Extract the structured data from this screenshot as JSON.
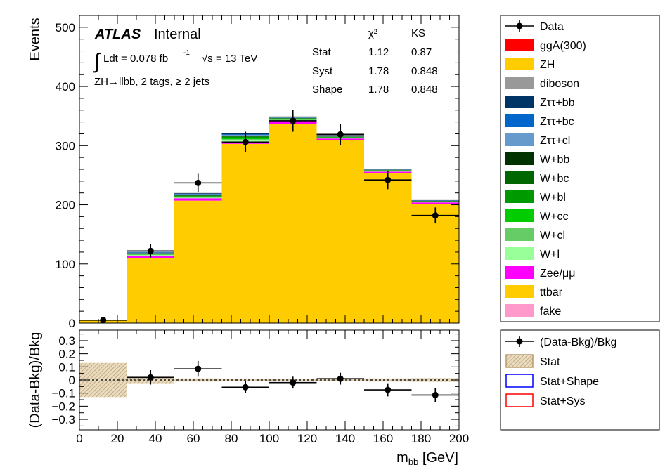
{
  "chart_data": [
    {
      "type": "bar",
      "panel": "main",
      "ylabel": "Events",
      "xlabel": "m_bb [GeV]",
      "xlim": [
        0,
        200
      ],
      "ylim": [
        0,
        520
      ],
      "yticks": [
        "0",
        "100",
        "200",
        "300",
        "400",
        "500"
      ],
      "bin_edges": [
        0,
        25,
        50,
        75,
        100,
        125,
        150,
        175,
        200
      ],
      "series": [
        {
          "name": "ttbar",
          "color": "#ffcc00",
          "values": [
            5,
            110,
            207,
            303,
            337,
            309,
            253,
            201
          ]
        },
        {
          "name": "Zee/μμ",
          "color": "#ff00ff",
          "values": [
            0.3,
            4,
            4,
            4,
            5,
            3,
            3,
            3
          ]
        },
        {
          "name": "W+l",
          "color": "#99ff99",
          "values": [
            0,
            1,
            1,
            2,
            1,
            1,
            1,
            0.5
          ]
        },
        {
          "name": "W+cl",
          "color": "#66cc66",
          "values": [
            0,
            0.5,
            1,
            2,
            1,
            0.5,
            0.5,
            0.5
          ]
        },
        {
          "name": "W+cc",
          "color": "#00cc00",
          "values": [
            0,
            0.5,
            1,
            2,
            1,
            0.5,
            0.5,
            0.5
          ]
        },
        {
          "name": "W+bl",
          "color": "#009900",
          "values": [
            0,
            0.5,
            1,
            2,
            1,
            0.5,
            0.5,
            0.5
          ]
        },
        {
          "name": "W+bc",
          "color": "#006600",
          "values": [
            0,
            0.5,
            1,
            1,
            0.5,
            0.5,
            0.5,
            0.3
          ]
        },
        {
          "name": "W+bb",
          "color": "#003300",
          "values": [
            0,
            1,
            1,
            1,
            0.5,
            0.5,
            0.3,
            0.3
          ]
        },
        {
          "name": "Zττ+cl",
          "color": "#6699cc",
          "values": [
            0,
            1,
            1,
            1,
            0.5,
            0.5,
            0.3,
            0.3
          ]
        },
        {
          "name": "Zττ+bc",
          "color": "#0066cc",
          "values": [
            0,
            0.5,
            0.5,
            1,
            0.5,
            0.5,
            0.3,
            0.3
          ]
        },
        {
          "name": "Zττ+bb",
          "color": "#003366",
          "values": [
            0,
            1,
            1,
            2,
            1,
            1,
            0.5,
            0.5
          ]
        },
        {
          "name": "diboson",
          "color": "#999999",
          "values": [
            0,
            0,
            0.5,
            0.5,
            0.5,
            0.5,
            0.3,
            0.3
          ]
        },
        {
          "name": "ZH",
          "color": "#ffcc00",
          "values": [
            0,
            0,
            0,
            0,
            0,
            0,
            0,
            0
          ]
        },
        {
          "name": "ggA(300)",
          "color": "#ff0000",
          "values": [
            0,
            0,
            0,
            0,
            0,
            0,
            0,
            0
          ]
        }
      ],
      "data_points": {
        "name": "Data",
        "x": [
          12.5,
          37.5,
          62.5,
          87.5,
          112.5,
          137.5,
          162.5,
          187.5
        ],
        "y": [
          5,
          122,
          237,
          306,
          342,
          319,
          242,
          182
        ],
        "yerr": [
          2.2,
          11,
          15.4,
          17.5,
          18.5,
          17.9,
          15.6,
          13.5
        ]
      },
      "legend": [
        "Data",
        "ggA(300)",
        "ZH",
        "diboson",
        "Zττ+bb",
        "Zττ+bc",
        "Zττ+cl",
        "W+bb",
        "W+bc",
        "W+bl",
        "W+cc",
        "W+cl",
        "W+l",
        "Zee/μμ",
        "ttbar",
        "fake"
      ],
      "legend_colors": {
        "ggA(300)": "#ff0000",
        "ZH": "#ffcc00",
        "diboson": "#999999",
        "Zττ+bb": "#003366",
        "Zττ+bc": "#0066cc",
        "Zττ+cl": "#6699cc",
        "W+bb": "#003300",
        "W+bc": "#006600",
        "W+bl": "#009900",
        "W+cc": "#00cc00",
        "W+cl": "#66cc66",
        "W+l": "#99ff99",
        "Zee/μμ": "#ff00ff",
        "ttbar": "#ffcc00",
        "fake": "#ff99cc"
      },
      "legend_placement": "right, outside plot"
    },
    {
      "type": "scatter",
      "panel": "ratio",
      "ylabel": "(Data-Bkg)/Bkg",
      "xlabel": "m_bb [GeV]",
      "xlim": [
        0,
        200
      ],
      "ylim": [
        -0.38,
        0.38
      ],
      "yticks": [
        "−0.3",
        "−0.2",
        "−0.1",
        "0",
        "0.1",
        "0.2",
        "0.3"
      ],
      "xticks": [
        "0",
        "20",
        "40",
        "60",
        "80",
        "100",
        "120",
        "140",
        "160",
        "180",
        "200"
      ],
      "x": [
        12.5,
        37.5,
        62.5,
        87.5,
        112.5,
        137.5,
        162.5,
        187.5
      ],
      "y": [
        null,
        0.02,
        0.085,
        -0.055,
        -0.02,
        0.01,
        -0.075,
        -0.115
      ],
      "yerr": [
        null,
        0.055,
        0.06,
        0.045,
        0.045,
        0.045,
        0.05,
        0.055
      ],
      "stat_band": [
        0.13,
        0.025,
        0.012,
        0.01,
        0.01,
        0.01,
        0.012,
        0.014
      ],
      "legend": [
        "(Data-Bkg)/Bkg",
        "Stat",
        "Stat+Shape",
        "Stat+Sys"
      ],
      "legend_placement": "right, outside plot"
    }
  ],
  "annotations": {
    "atlas": "ATLAS",
    "internal": "Internal",
    "lumi_prefix": "∫",
    "lumi_text": "Ldt = 0.078 fb",
    "lumi_sup": "-1",
    "energy": "√s = 13 TeV",
    "region": "ZH→llbb, 2 tags, ≥ 2 jets"
  },
  "gof_table": {
    "headers": [
      "",
      "χ²",
      "KS"
    ],
    "rows": [
      [
        "Stat",
        "1.12",
        "0.87"
      ],
      [
        "Syst",
        "1.78",
        "0.848"
      ],
      [
        "Shape",
        "1.78",
        "0.848"
      ]
    ]
  },
  "axis_labels": {
    "main_y": "Events",
    "ratio_y": "(Data-Bkg)/Bkg",
    "x_main": "m",
    "x_sub": "bb",
    "x_unit": " [GeV]"
  }
}
